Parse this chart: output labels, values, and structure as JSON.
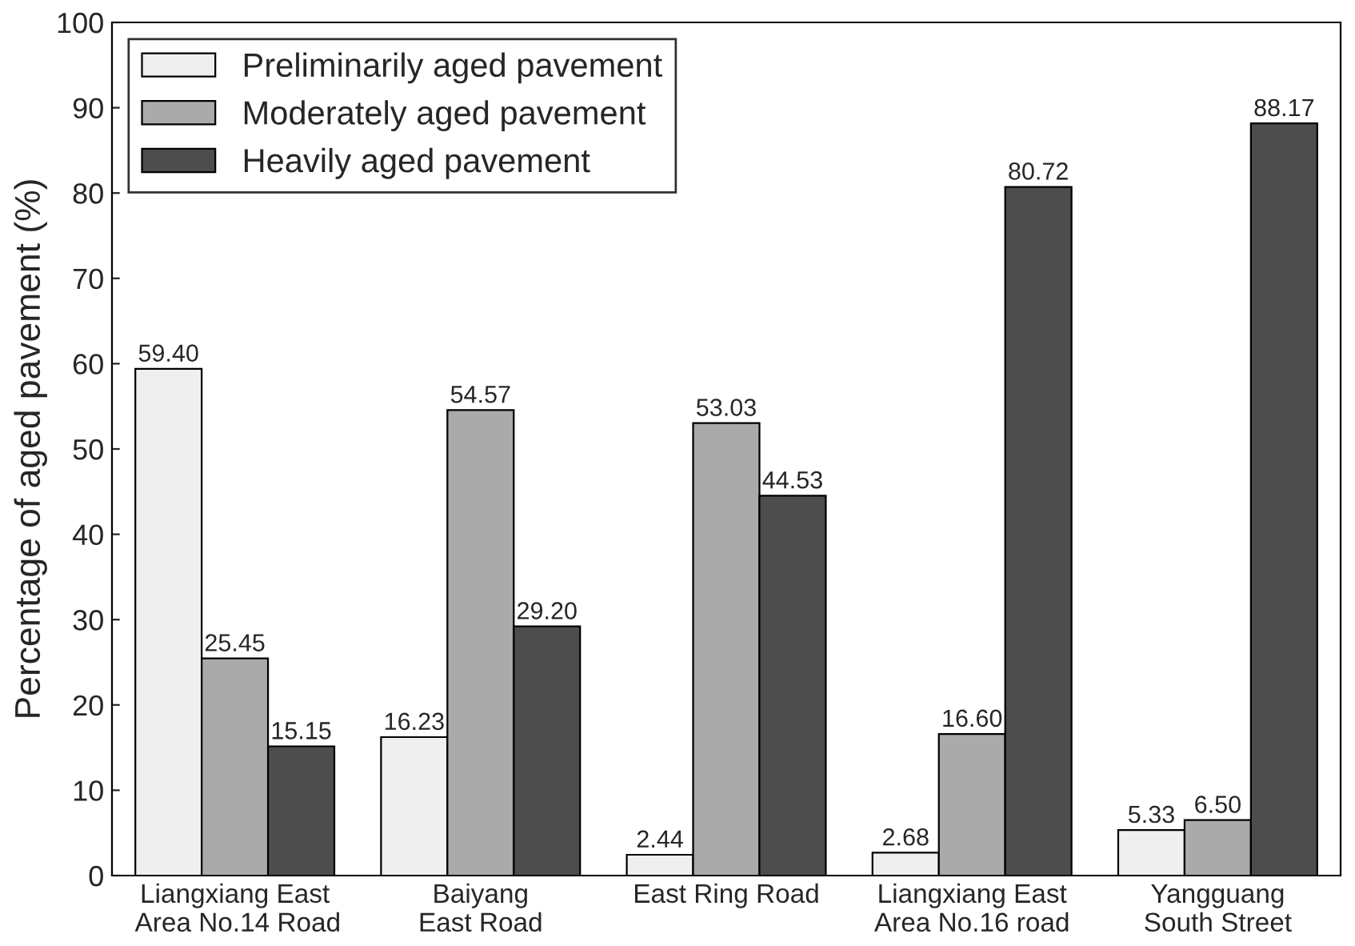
{
  "chart_data": {
    "type": "bar",
    "ylabel": "Percentage of aged pavement (%)",
    "categories": [
      "Liangxiang East\n Area No.14 Road",
      "Baiyang\nEast Road",
      "East Ring Road",
      "Liangxiang East\nArea No.16 road",
      "Yangguang\nSouth Street"
    ],
    "series": [
      {
        "name": "Preliminarily aged pavement",
        "color": "#efefef",
        "values": [
          59.4,
          16.23,
          2.44,
          2.68,
          5.33
        ],
        "value_labels": [
          "59.40",
          "16.23",
          "2.44",
          "2.68",
          "5.33"
        ]
      },
      {
        "name": "Moderately aged pavement",
        "color": "#aaaaaa",
        "values": [
          25.45,
          54.57,
          53.03,
          16.6,
          6.5
        ],
        "value_labels": [
          "25.45",
          "54.57",
          "53.03",
          "16.60",
          "6.50"
        ]
      },
      {
        "name": "Heavily aged pavement",
        "color": "#4d4d4d",
        "values": [
          15.15,
          29.2,
          44.53,
          80.72,
          88.17
        ],
        "value_labels": [
          "15.15",
          "29.20",
          "44.53",
          "80.72",
          "88.17"
        ]
      }
    ],
    "ylim": [
      0,
      100
    ],
    "yticks": [
      0,
      10,
      20,
      30,
      40,
      50,
      60,
      70,
      80,
      90,
      100
    ],
    "legend": "top left",
    "grid": false
  }
}
